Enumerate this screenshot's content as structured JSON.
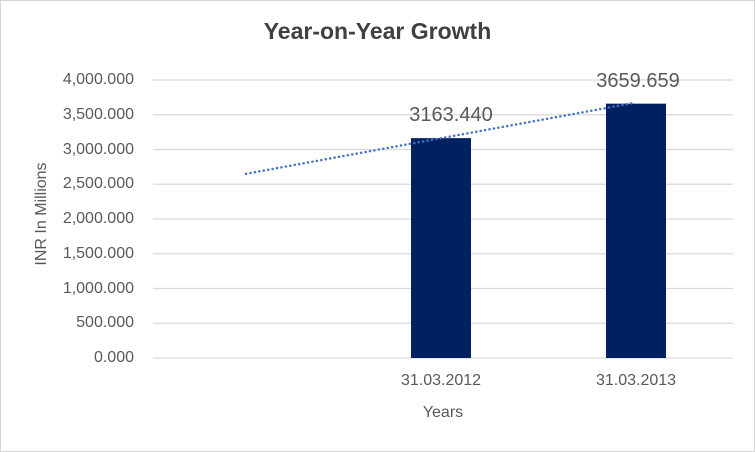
{
  "chart_data": {
    "type": "bar",
    "title": "Year-on-Year Growth",
    "xlabel": "Years",
    "ylabel": "INR In Millions",
    "categories": [
      "31.03.2012",
      "31.03.2013"
    ],
    "values": [
      3163.44,
      3659.659
    ],
    "data_labels": [
      "3163.440",
      "3659.659"
    ],
    "ylim": [
      0,
      4000
    ],
    "ytick_step": 500,
    "ytick_labels": [
      "0.000",
      "500.000",
      "1,000.000",
      "1,500.000",
      "2,000.000",
      "2,500.000",
      "3,000.000",
      "3,500.000",
      "4,000.000"
    ],
    "grid": true,
    "legend": "none",
    "bar_color": "#002060",
    "gridline_color": "#d9d9d9",
    "text_color": "#595959",
    "title_color": "#404040",
    "trendline": {
      "style": "dotted",
      "color": "#4472c4",
      "start_value": 2650,
      "end_value": 3670
    }
  }
}
